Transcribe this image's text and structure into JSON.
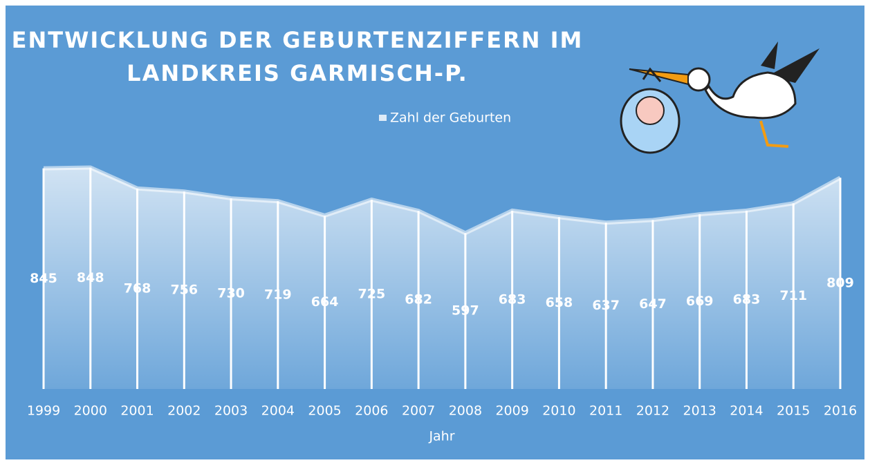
{
  "chart_data": {
    "type": "area",
    "title": [
      "ENTWICKLUNG DER GEBURTENZIFFERN IM",
      "LANDKREIS GARMISCH-P."
    ],
    "x_label": "Jahr",
    "categories": [
      "1999",
      "2000",
      "2001",
      "2002",
      "2003",
      "2004",
      "2005",
      "2006",
      "2007",
      "2008",
      "2009",
      "2010",
      "2011",
      "2012",
      "2013",
      "2014",
      "2015",
      "2016"
    ],
    "series": [
      {
        "name": "Zahl der Geburten",
        "color": "#ffffff",
        "values": [
          845,
          848,
          768,
          756,
          730,
          719,
          664,
          725,
          682,
          597,
          683,
          658,
          637,
          647,
          669,
          683,
          711,
          809
        ]
      }
    ],
    "ylim": [
      0,
      1000
    ],
    "data_labels": true,
    "legend": "top"
  }
}
